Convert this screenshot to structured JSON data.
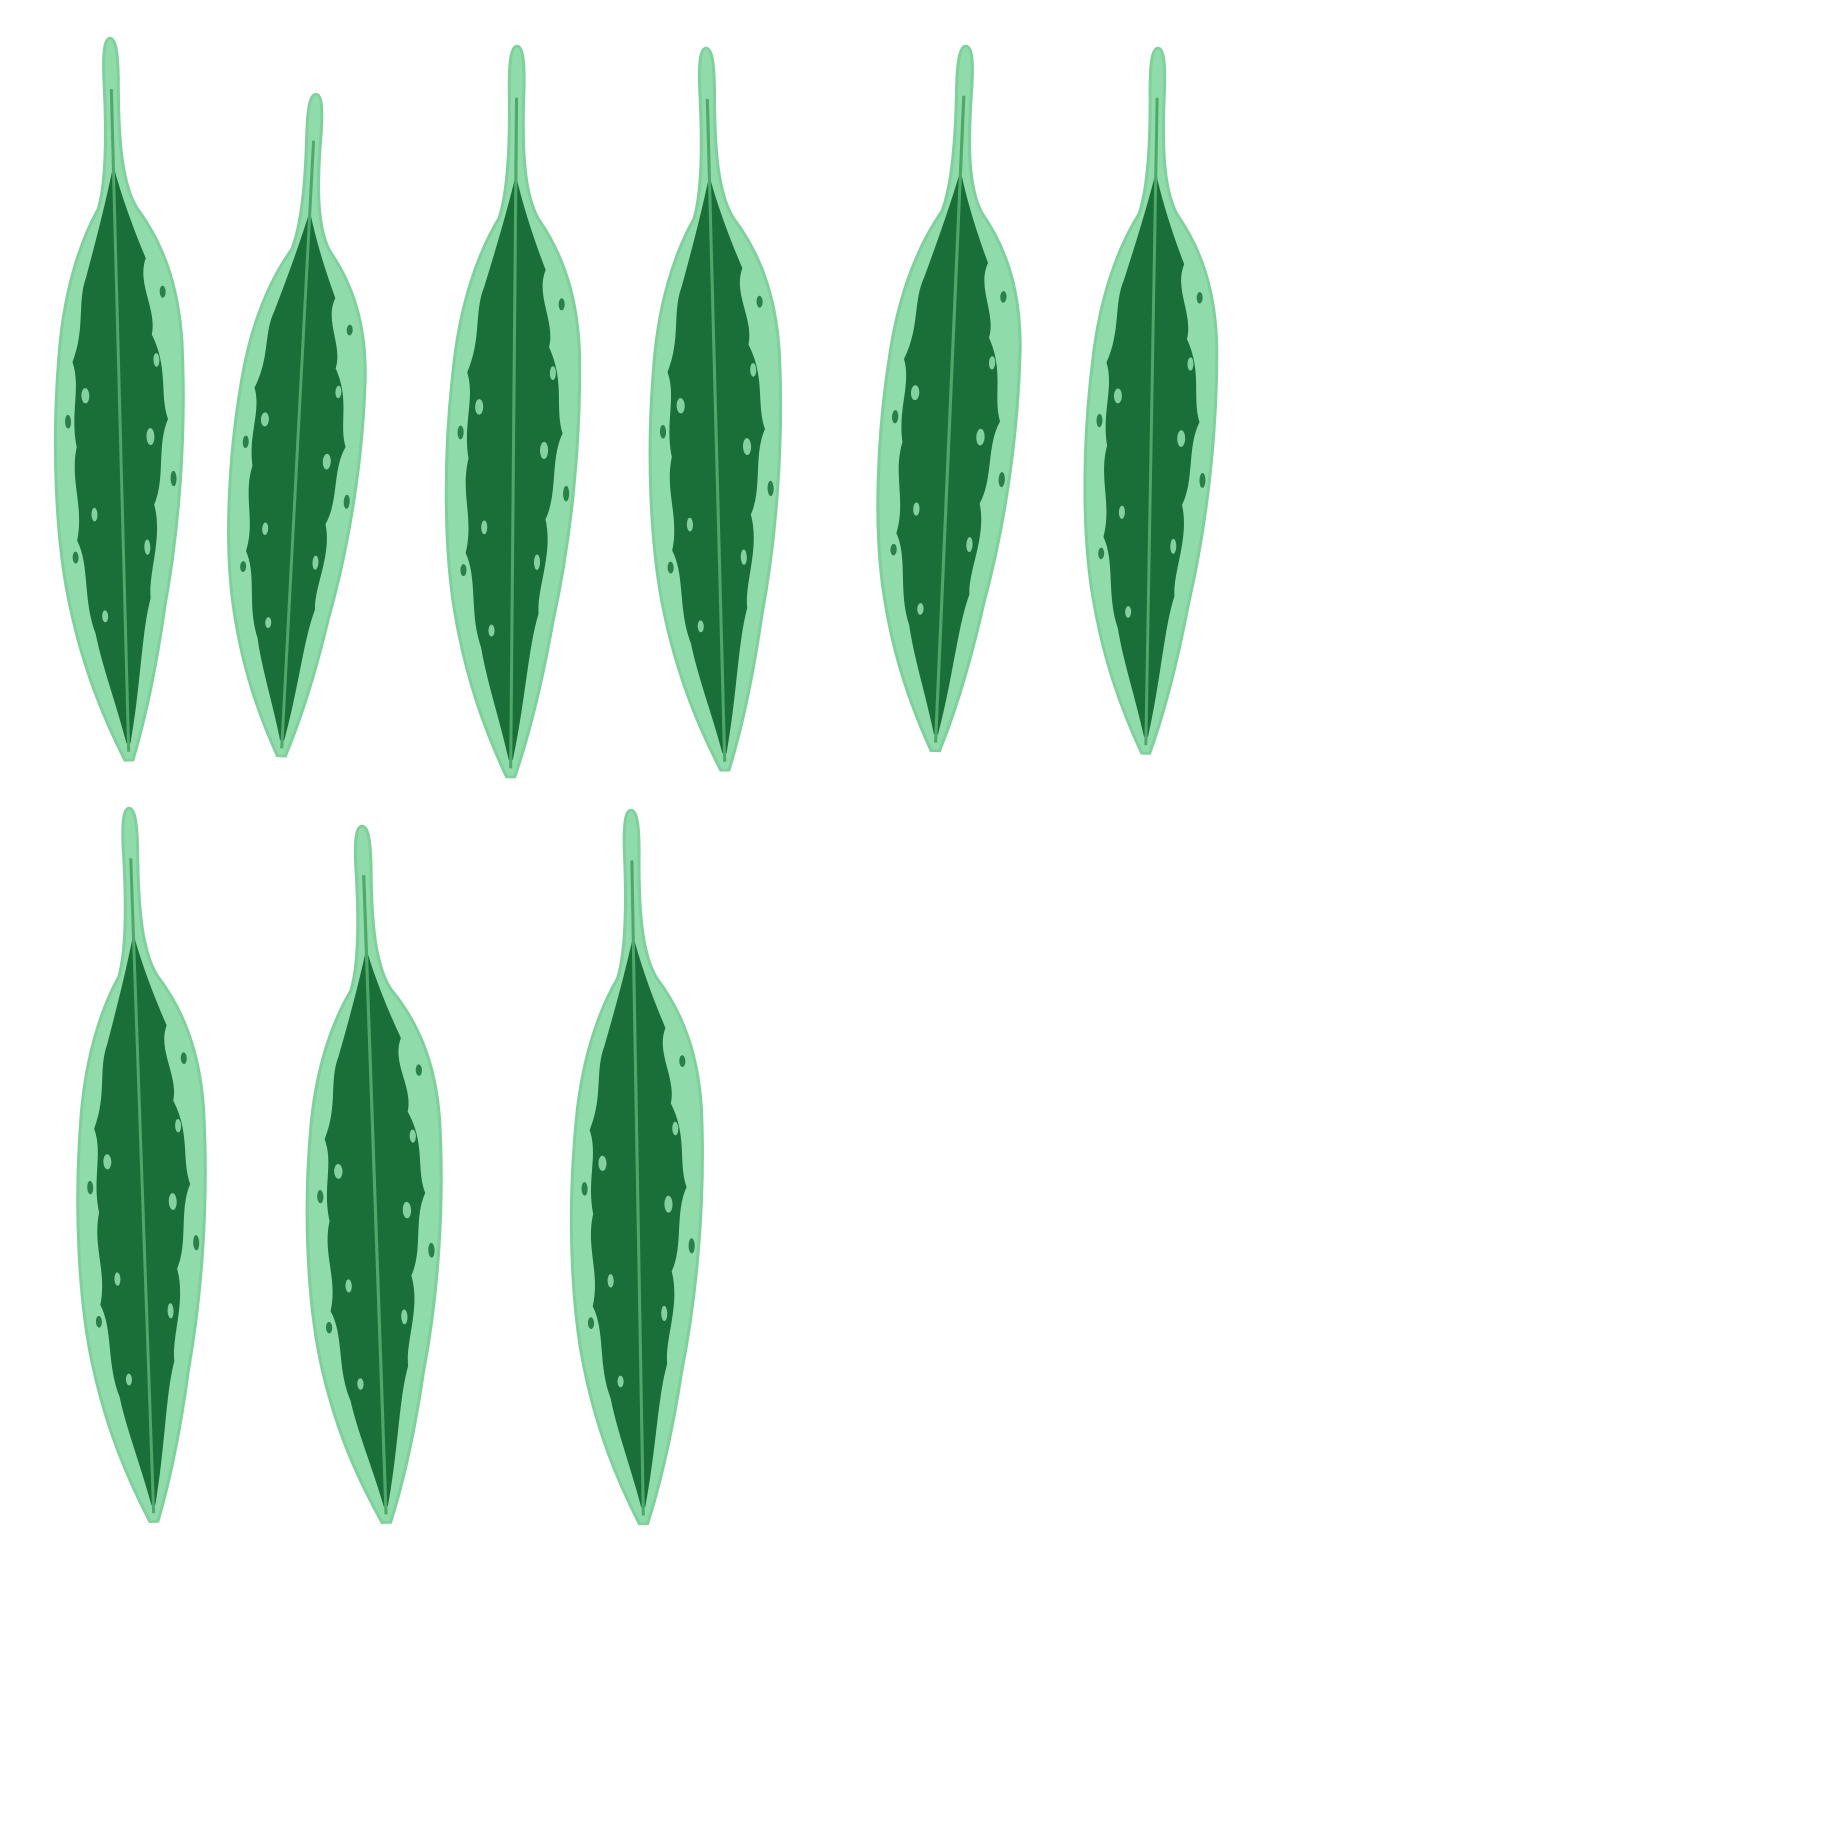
{
  "scene": {
    "subject": "leaf",
    "leaf_count": 9,
    "rows": [
      6,
      3
    ],
    "colors": {
      "background": "#ffffff",
      "leaf_edge": "#8fdcaa",
      "leaf_edge_outline": "#7fd09c",
      "leaf_center": "#1a6e38",
      "leaf_vein": "#4fa76a"
    }
  }
}
